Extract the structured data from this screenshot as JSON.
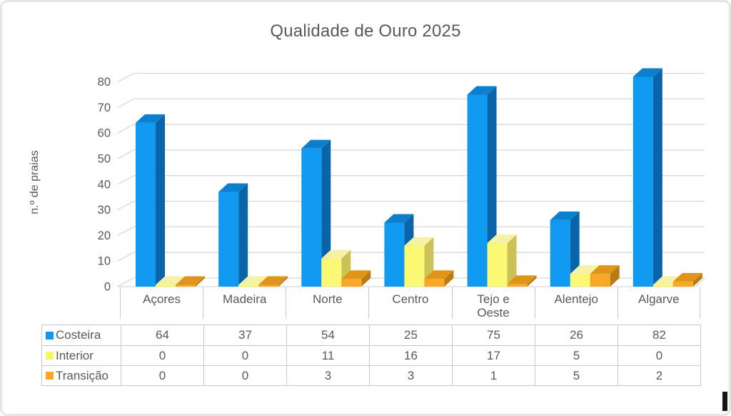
{
  "window": {
    "background": "#ffffff",
    "border_color": "#e5e5e5"
  },
  "chart_data": {
    "type": "bar",
    "style": "3d-clustered",
    "title": "Qualidade de Ouro 2025",
    "ylabel": "n.º de praias",
    "xlabel": "",
    "categories": [
      "Açores",
      "Madeira",
      "Norte",
      "Centro",
      "Tejo e Oeste",
      "Alentejo",
      "Algarve"
    ],
    "series": [
      {
        "name": "Costeira",
        "values": [
          64,
          37,
          54,
          25,
          75,
          26,
          82
        ],
        "colors": {
          "front": "#0f99f0",
          "top": "#0c7fce",
          "side": "#0a64a9",
          "swatch": "#1296f0"
        }
      },
      {
        "name": "Interior",
        "values": [
          0,
          0,
          11,
          16,
          17,
          5,
          0
        ],
        "colors": {
          "front": "#fbf874",
          "top": "#f5f2a6",
          "side": "#cdc257",
          "swatch": "#faf46b"
        }
      },
      {
        "name": "Transição",
        "values": [
          0,
          0,
          3,
          3,
          1,
          5,
          2
        ],
        "colors": {
          "front": "#f9a826",
          "top": "#de9519",
          "side": "#ba7b14",
          "swatch": "#f9a826"
        }
      }
    ],
    "ylim": [
      0,
      80
    ],
    "yticks": [
      0,
      10,
      20,
      30,
      40,
      50,
      60,
      70,
      80
    ],
    "grid": true,
    "legend_position": "table-left",
    "show_data_table": true
  },
  "ui_colors": {
    "text": "#595959",
    "table_border": "#c9c9c9",
    "gridline": "#d8d8d8"
  }
}
